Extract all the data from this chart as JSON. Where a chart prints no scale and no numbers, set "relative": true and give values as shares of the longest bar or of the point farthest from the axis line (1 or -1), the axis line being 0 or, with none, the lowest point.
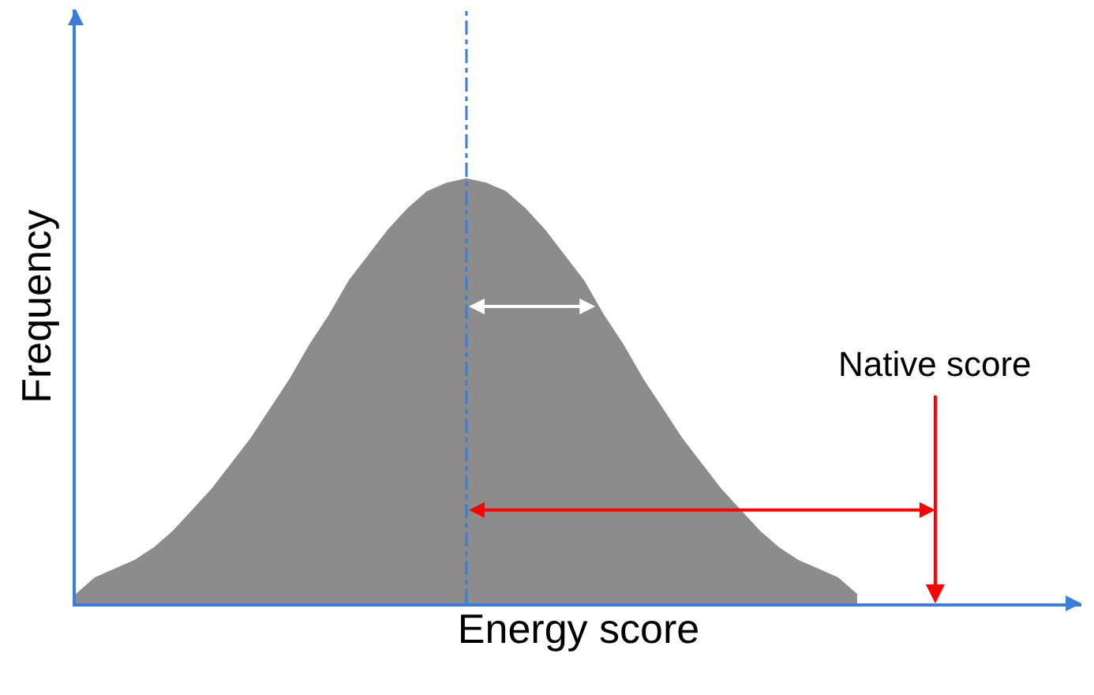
{
  "chart_data": {
    "type": "area",
    "relative": true,
    "xlabel": "Energy score",
    "ylabel": "Frequency",
    "categories": [
      null,
      null,
      null,
      null,
      null,
      null,
      null,
      null,
      null,
      null,
      null,
      null,
      null,
      null,
      null,
      null,
      null,
      null,
      null,
      null,
      null,
      null,
      null,
      null,
      null,
      null,
      null,
      null,
      null,
      null,
      null,
      null,
      null,
      null,
      null,
      null,
      null,
      null,
      null,
      null,
      null,
      null,
      null,
      null,
      null
    ],
    "tick_labels": false,
    "series": [
      {
        "color": "#8c8c8c",
        "values": [
          0.02,
          0.06,
          0.08,
          0.1,
          0.13,
          0.17,
          0.22,
          0.27,
          0.33,
          0.39,
          0.46,
          0.53,
          0.61,
          0.68,
          0.76,
          0.82,
          0.88,
          0.93,
          0.97,
          0.99,
          1,
          0.99,
          0.97,
          0.93,
          0.88,
          0.82,
          0.76,
          0.68,
          0.61,
          0.53,
          0.46,
          0.39,
          0.33,
          0.27,
          0.22,
          0.17,
          0.13,
          0.1,
          0.08,
          0.06,
          0.02,
          null,
          null,
          null,
          null
        ]
      }
    ],
    "ref_lines": [
      {
        "axis": "x",
        "color": "#3b7ddd",
        "line_style": "dashed"
      },
      {
        "axis": "x",
        "label": "Native score",
        "color": "#ff0000",
        "line_style": "solid"
      }
    ]
  }
}
